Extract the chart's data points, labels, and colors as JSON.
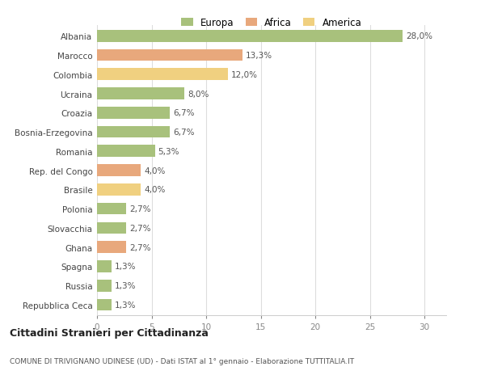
{
  "categories": [
    "Albania",
    "Marocco",
    "Colombia",
    "Ucraina",
    "Croazia",
    "Bosnia-Erzegovina",
    "Romania",
    "Rep. del Congo",
    "Brasile",
    "Polonia",
    "Slovacchia",
    "Ghana",
    "Spagna",
    "Russia",
    "Repubblica Ceca"
  ],
  "values": [
    28.0,
    13.3,
    12.0,
    8.0,
    6.7,
    6.7,
    5.3,
    4.0,
    4.0,
    2.7,
    2.7,
    2.7,
    1.3,
    1.3,
    1.3
  ],
  "labels": [
    "28,0%",
    "13,3%",
    "12,0%",
    "8,0%",
    "6,7%",
    "6,7%",
    "5,3%",
    "4,0%",
    "4,0%",
    "2,7%",
    "2,7%",
    "2,7%",
    "1,3%",
    "1,3%",
    "1,3%"
  ],
  "colors": [
    "#a8c17c",
    "#e8a87c",
    "#f0d080",
    "#a8c17c",
    "#a8c17c",
    "#a8c17c",
    "#a8c17c",
    "#e8a87c",
    "#f0d080",
    "#a8c17c",
    "#a8c17c",
    "#e8a87c",
    "#a8c17c",
    "#a8c17c",
    "#a8c17c"
  ],
  "legend_labels": [
    "Europa",
    "Africa",
    "America"
  ],
  "legend_colors": [
    "#a8c17c",
    "#e8a87c",
    "#f0d080"
  ],
  "title": "Cittadini Stranieri per Cittadinanza",
  "subtitle": "COMUNE DI TRIVIGNANO UDINESE (UD) - Dati ISTAT al 1° gennaio - Elaborazione TUTTITALIA.IT",
  "xlim": [
    0,
    32
  ],
  "xticks": [
    0,
    5,
    10,
    15,
    20,
    25,
    30
  ],
  "background_color": "#ffffff",
  "bar_background": "#ffffff"
}
